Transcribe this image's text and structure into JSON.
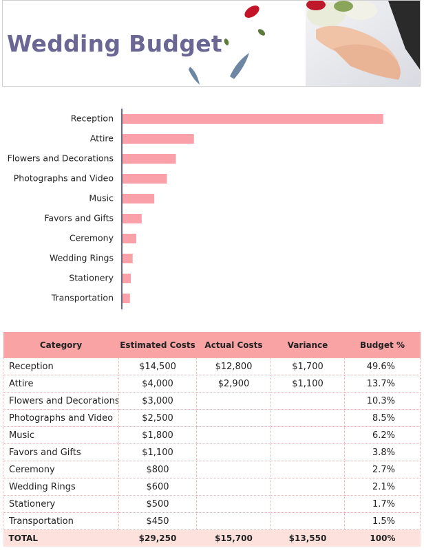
{
  "header": {
    "title": "Wedding Budget"
  },
  "chart_data": {
    "type": "bar",
    "orientation": "horizontal",
    "categories": [
      "Reception",
      "Attire",
      "Flowers and Decorations",
      "Photographs and Video",
      "Music",
      "Favors and Gifts",
      "Ceremony",
      "Wedding Rings",
      "Stationery",
      "Transportation"
    ],
    "values": [
      14500,
      4000,
      3000,
      2500,
      1800,
      1100,
      800,
      600,
      500,
      450
    ],
    "color": "#f9a0a8",
    "xlim": [
      0,
      16000
    ]
  },
  "table": {
    "columns": [
      "Category",
      "Estimated Costs",
      "Actual Costs",
      "Variance",
      "Budget %"
    ],
    "rows": [
      [
        "Reception",
        "$14,500",
        "$12,800",
        "$1,700",
        "49.6%"
      ],
      [
        "Attire",
        "$4,000",
        "$2,900",
        "$1,100",
        "13.7%"
      ],
      [
        "Flowers and Decorations",
        "$3,000",
        null,
        null,
        "10.3%"
      ],
      [
        "Photographs and Video",
        "$2,500",
        null,
        null,
        "8.5%"
      ],
      [
        "Music",
        "$1,800",
        null,
        null,
        "6.2%"
      ],
      [
        "Favors and Gifts",
        "$1,100",
        null,
        null,
        "3.8%"
      ],
      [
        "Ceremony",
        "$800",
        null,
        null,
        "2.7%"
      ],
      [
        "Wedding Rings",
        "$600",
        null,
        null,
        "2.1%"
      ],
      [
        "Stationery",
        "$500",
        null,
        null,
        "1.7%"
      ],
      [
        "Transportation",
        "$450",
        null,
        null,
        "1.5%"
      ]
    ],
    "total": [
      "TOTAL",
      "$29,250",
      "$15,700",
      "$13,550",
      "100%"
    ]
  }
}
